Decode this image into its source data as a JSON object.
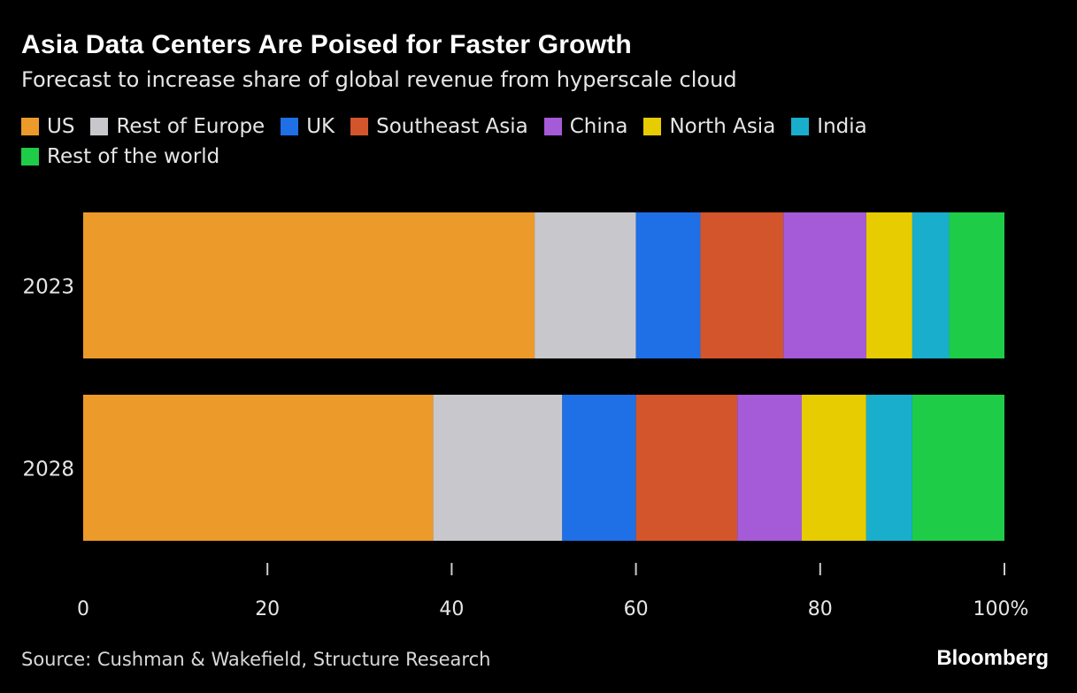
{
  "header": {
    "title": "Asia Data Centers Are Poised for Faster Growth",
    "subtitle": "Forecast to increase share of global revenue from hyperscale cloud"
  },
  "footer": {
    "source": "Source: Cushman & Wakefield, Structure Research",
    "brand": "Bloomberg"
  },
  "chart_data": {
    "type": "bar",
    "orientation": "horizontal",
    "stacked": true,
    "categories": [
      "2023",
      "2028"
    ],
    "series": [
      {
        "name": "US",
        "color": "#ec9a29",
        "values": [
          49,
          38
        ]
      },
      {
        "name": "Rest of Europe",
        "color": "#c8c8cc",
        "values": [
          11,
          14
        ]
      },
      {
        "name": "UK",
        "color": "#1f6fe6",
        "values": [
          7,
          8
        ]
      },
      {
        "name": "Southeast Asia",
        "color": "#d2552b",
        "values": [
          9,
          11
        ]
      },
      {
        "name": "China",
        "color": "#a55ad8",
        "values": [
          9,
          7
        ]
      },
      {
        "name": "North Asia",
        "color": "#e6cc00",
        "values": [
          5,
          7
        ]
      },
      {
        "name": "India",
        "color": "#19aecc",
        "values": [
          4,
          5
        ]
      },
      {
        "name": "Rest of the world",
        "color": "#1fcc48",
        "values": [
          6,
          10
        ]
      }
    ],
    "xlim": [
      0,
      100
    ],
    "x_ticks": [
      0,
      20,
      40,
      60,
      80,
      100
    ],
    "x_tick_labels": [
      "0",
      "20",
      "40",
      "60",
      "80",
      "100%"
    ],
    "grid": false,
    "legend_position": "top-left"
  }
}
